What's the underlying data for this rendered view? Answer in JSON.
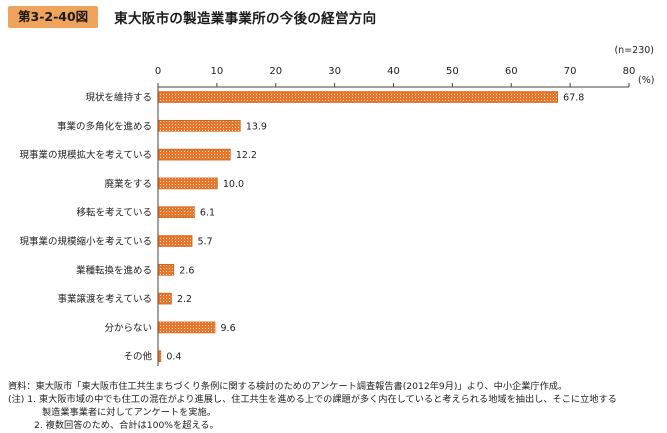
{
  "header": {
    "figure_no": "第3-2-40図",
    "title": "東大阪市の製造業事業所の今後の経営方向"
  },
  "chart_data": {
    "type": "bar",
    "orientation": "horizontal",
    "sample_note": "(n=230)",
    "unit": "(%)",
    "categories": [
      "現状を維持する",
      "事業の多角化を進める",
      "現事業の規模拡大を考えている",
      "廃業をする",
      "移転を考えている",
      "現事業の規模縮小を考えている",
      "業種転換を進める",
      "事業譲渡を考えている",
      "分からない",
      "その他"
    ],
    "values": [
      67.8,
      13.9,
      12.2,
      10.0,
      6.1,
      5.7,
      2.6,
      2.2,
      9.6,
      0.4
    ],
    "value_labels": [
      "67.8",
      "13.9",
      "12.2",
      "10.0",
      "6.1",
      "5.7",
      "2.6",
      "2.2",
      "9.6",
      "0.4"
    ],
    "xlim": [
      0,
      80
    ],
    "xticks": [
      0,
      10,
      20,
      30,
      40,
      50,
      60,
      70,
      80
    ],
    "bar_color": "#e8762c",
    "bar_pattern": "dotted orange",
    "grid": false
  },
  "notes": {
    "source": "資料：東大阪市「東大阪市住工共生まちづくり条例に関する検討のためのアンケート調査報告書(2012年9月)」より、中小企業庁作成。",
    "note1a": "(注) 1. 東大阪市域の中でも住工の混在がより進展し、住工共生を進める上での課題が多く内在していると考えられる地域を抽出し、そこに立地する",
    "note1b": "製造業事業者に対してアンケートを実施。",
    "note2": "2. 複数回答のため、合計は100%を超える。"
  }
}
